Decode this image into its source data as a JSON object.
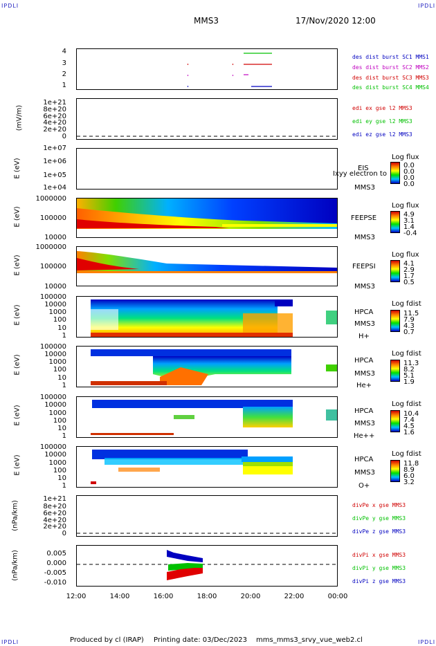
{
  "corners": {
    "tl": "IPDLI",
    "tr": "IPDLI",
    "bl": "IPDLI",
    "br": "IPDLI"
  },
  "header": {
    "spacecraft": "MMS3",
    "datetime": "17/Nov/2020 12:00"
  },
  "footer": {
    "produced": "Produced by cl (IRAP)",
    "printing": "Printing date: 03/Dec/2023",
    "file": "mms_mms3_srvy_vue_web2.cl"
  },
  "x_ticks": [
    "12:00",
    "14:00",
    "16:00",
    "18:00",
    "20:00",
    "22:00",
    "00:00"
  ],
  "colors": {
    "blue": "#0000c0",
    "magenta": "#c000c0",
    "red": "#d00000",
    "green": "#00c000"
  },
  "panels": {
    "p1": {
      "ticks": [
        "4",
        "3",
        "2",
        "1"
      ],
      "legend": [
        "des dist burst SC1 MMS1",
        "des dist burst SC2 MMS2",
        "des dist burst SC3 MMS3",
        "des dist burst SC4 MMS4"
      ]
    },
    "p2": {
      "ylabel": "(mV/m)",
      "ticks": [
        "1e+21",
        "8e+20",
        "6e+20",
        "4e+20",
        "2e+20",
        "0"
      ],
      "legend": [
        "edi ex gse l2 MMS3",
        "edi ey gse l2 MMS3",
        "edi ez gse l2 MMS3"
      ]
    },
    "p3": {
      "ylabel": "E (eV)",
      "ticks": [
        "1e+07",
        "1e+06",
        "1e+05",
        "1e+04"
      ],
      "inst": "EIS",
      "sc": "MMS3",
      "overlay": "Ixyy electron to",
      "cbtitle": "Log flux",
      "cbvals": [
        "0.0",
        "0.0",
        "0.0",
        "0.0"
      ]
    },
    "p4": {
      "ylabel": "E (eV)",
      "ticks": [
        "1000000",
        "100000",
        "10000"
      ],
      "inst": "FEEPSE",
      "sc": "MMS3",
      "cbtitle": "Log flux",
      "cbvals": [
        "4.9",
        "3.1",
        "1.4",
        "-0.4"
      ]
    },
    "p5": {
      "ylabel": "E (eV)",
      "ticks": [
        "1000000",
        "100000",
        "10000"
      ],
      "inst": "FEEPSI",
      "sc": "MMS3",
      "cbtitle": "Log flux",
      "cbvals": [
        "4.1",
        "2.9",
        "1.7",
        "0.5"
      ]
    },
    "p6": {
      "ylabel": "E (eV)",
      "ticks": [
        "100000",
        "10000",
        "1000",
        "100",
        "10",
        "1"
      ],
      "inst": "HPCA",
      "sc": "MMS3",
      "species": "H+",
      "cbtitle": "Log fdist",
      "cbvals": [
        "11.5",
        "7.9",
        "4.3",
        "0.7"
      ]
    },
    "p7": {
      "ylabel": "E (eV)",
      "ticks": [
        "100000",
        "10000",
        "1000",
        "100",
        "10",
        "1"
      ],
      "inst": "HPCA",
      "sc": "MMS3",
      "species": "He+",
      "cbtitle": "Log fdist",
      "cbvals": [
        "11.3",
        "8.2",
        "5.1",
        "1.9"
      ]
    },
    "p8": {
      "ylabel": "E (eV)",
      "ticks": [
        "100000",
        "10000",
        "1000",
        "100",
        "10",
        "1"
      ],
      "inst": "HPCA",
      "sc": "MMS3",
      "species": "He++",
      "cbtitle": "Log fdist",
      "cbvals": [
        "10.4",
        "7.4",
        "4.5",
        "1.6"
      ]
    },
    "p9": {
      "ylabel": "E (eV)",
      "ticks": [
        "100000",
        "10000",
        "1000",
        "100",
        "10",
        "1"
      ],
      "inst": "HPCA",
      "sc": "MMS3",
      "species": "O+",
      "cbtitle": "Log fdist",
      "cbvals": [
        "11.8",
        "8.9",
        "6.0",
        "3.2"
      ]
    },
    "p10": {
      "ylabel": "(nPa/km)",
      "ticks": [
        "1e+21",
        "8e+20",
        "6e+20",
        "4e+20",
        "2e+20",
        "0"
      ],
      "legend": [
        "divPe x gse MMS3",
        "divPe y gse MMS3",
        "divPe z gse MMS3"
      ]
    },
    "p11": {
      "ylabel": "(nPa/km)",
      "ticks": [
        "0.005",
        "0.000",
        "-0.005",
        "-0.010"
      ],
      "legend": [
        "divPi x gse MMS3",
        "divPi y gse MMS3",
        "divPi z gse MMS3"
      ]
    }
  },
  "chart_data": {
    "type": "multi-panel time series / spectrogram",
    "x_range": [
      "12:00",
      "00:00"
    ],
    "burst_intervals_hours": {
      "MMS4": [
        [
          19.8,
          21.0
        ]
      ],
      "MMS3": [
        [
          19.8,
          21.0
        ]
      ],
      "MMS2": [
        [
          19.8,
          20.0
        ]
      ],
      "MMS1": [
        [
          20.0,
          21.0
        ]
      ]
    },
    "divPi_range_nPa_per_km": {
      "x": [
        -0.009,
        -0.004
      ],
      "y": [
        -0.004,
        0.001
      ],
      "z": [
        0.002,
        0.007
      ],
      "time_hours": [
        16.2,
        17.8
      ]
    }
  }
}
